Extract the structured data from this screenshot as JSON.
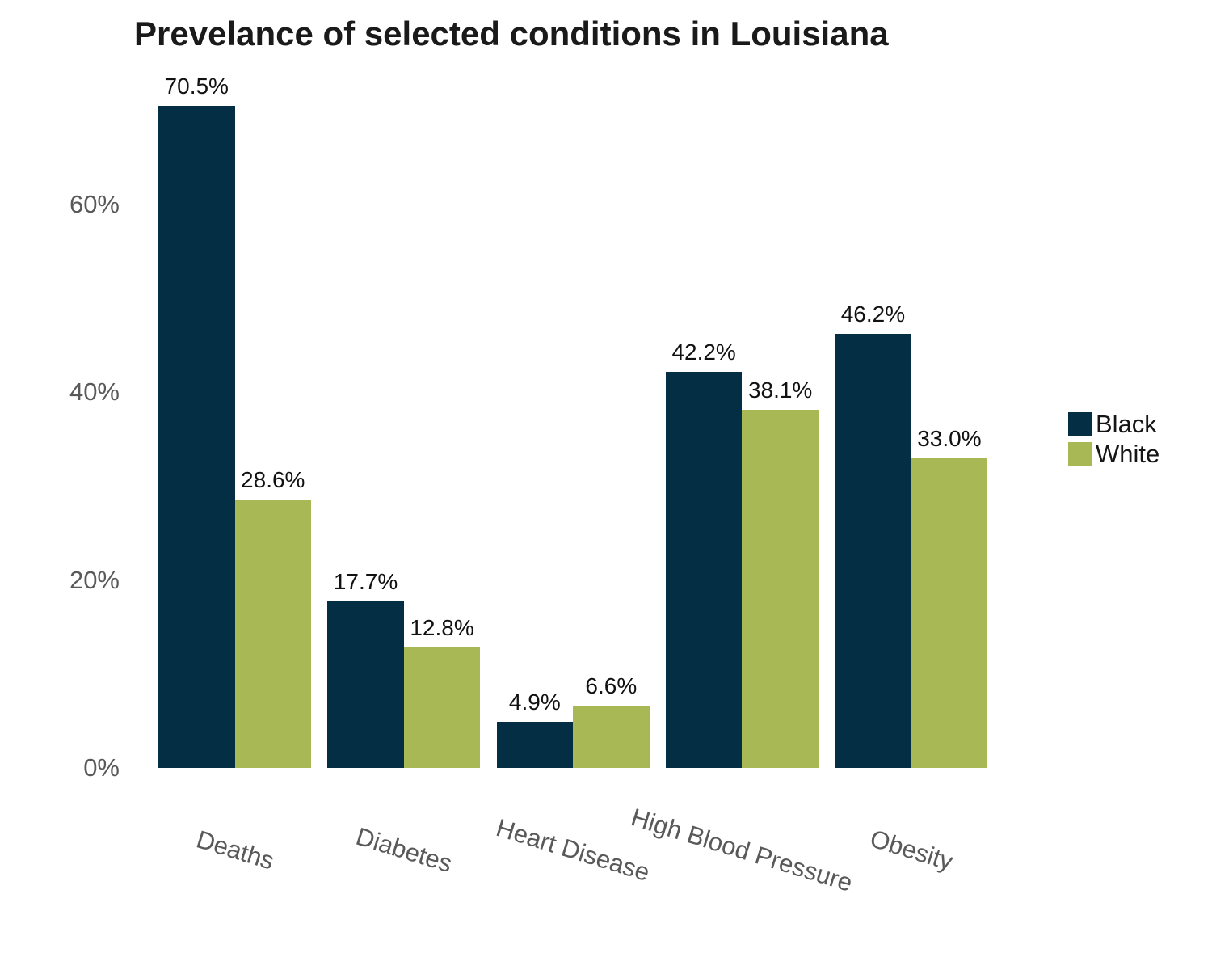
{
  "title": "Prevelance of selected conditions in Louisiana",
  "chart_data": {
    "type": "bar",
    "categories": [
      "Deaths",
      "Diabetes",
      "Heart Disease",
      "High Blood Pressure",
      "Obesity"
    ],
    "series": [
      {
        "name": "Black",
        "color": "#042e44",
        "values": [
          70.5,
          17.7,
          4.9,
          42.2,
          46.2
        ]
      },
      {
        "name": "White",
        "color": "#a8b854",
        "values": [
          28.6,
          12.8,
          6.6,
          38.1,
          33.0
        ]
      }
    ],
    "value_labels": [
      [
        "70.5%",
        "17.7%",
        "4.9%",
        "42.2%",
        "46.2%"
      ],
      [
        "28.6%",
        "12.8%",
        "6.6%",
        "38.1%",
        "33.0%"
      ]
    ],
    "title": "Prevelance of selected conditions in Louisiana",
    "xlabel": "",
    "ylabel": "",
    "ytick_values": [
      0,
      20,
      40,
      60
    ],
    "ytick_labels": [
      "0%",
      "20%",
      "40%",
      "60%"
    ],
    "ylim": [
      0,
      72
    ],
    "grid": false,
    "axis_lines": false,
    "legend_position": "right",
    "bar_value_labels_shown": true
  },
  "style_colors": {
    "background": "#ffffff",
    "title_text": "#1a1a1a",
    "tick_text": "#595959",
    "value_label_text": "#111111",
    "series_black": "#042e44",
    "series_white": "#a8b854"
  }
}
